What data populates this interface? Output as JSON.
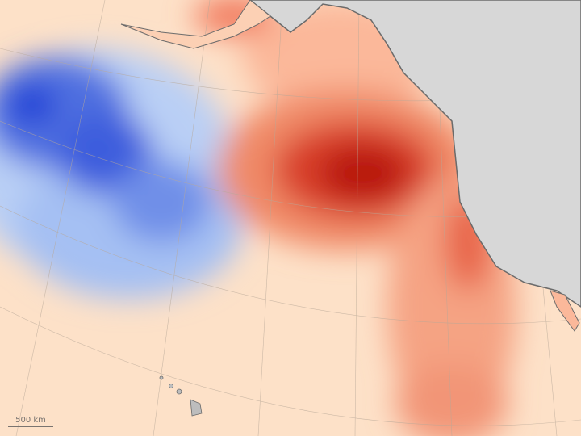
{
  "map": {
    "scale_label": "500 km",
    "colors": {
      "ocean_neutral": "#fde3cc",
      "warm": "#c81e10",
      "cool": "#1f3fd6",
      "land": "#d7d7d7",
      "coast": "#6b6b6b"
    }
  }
}
